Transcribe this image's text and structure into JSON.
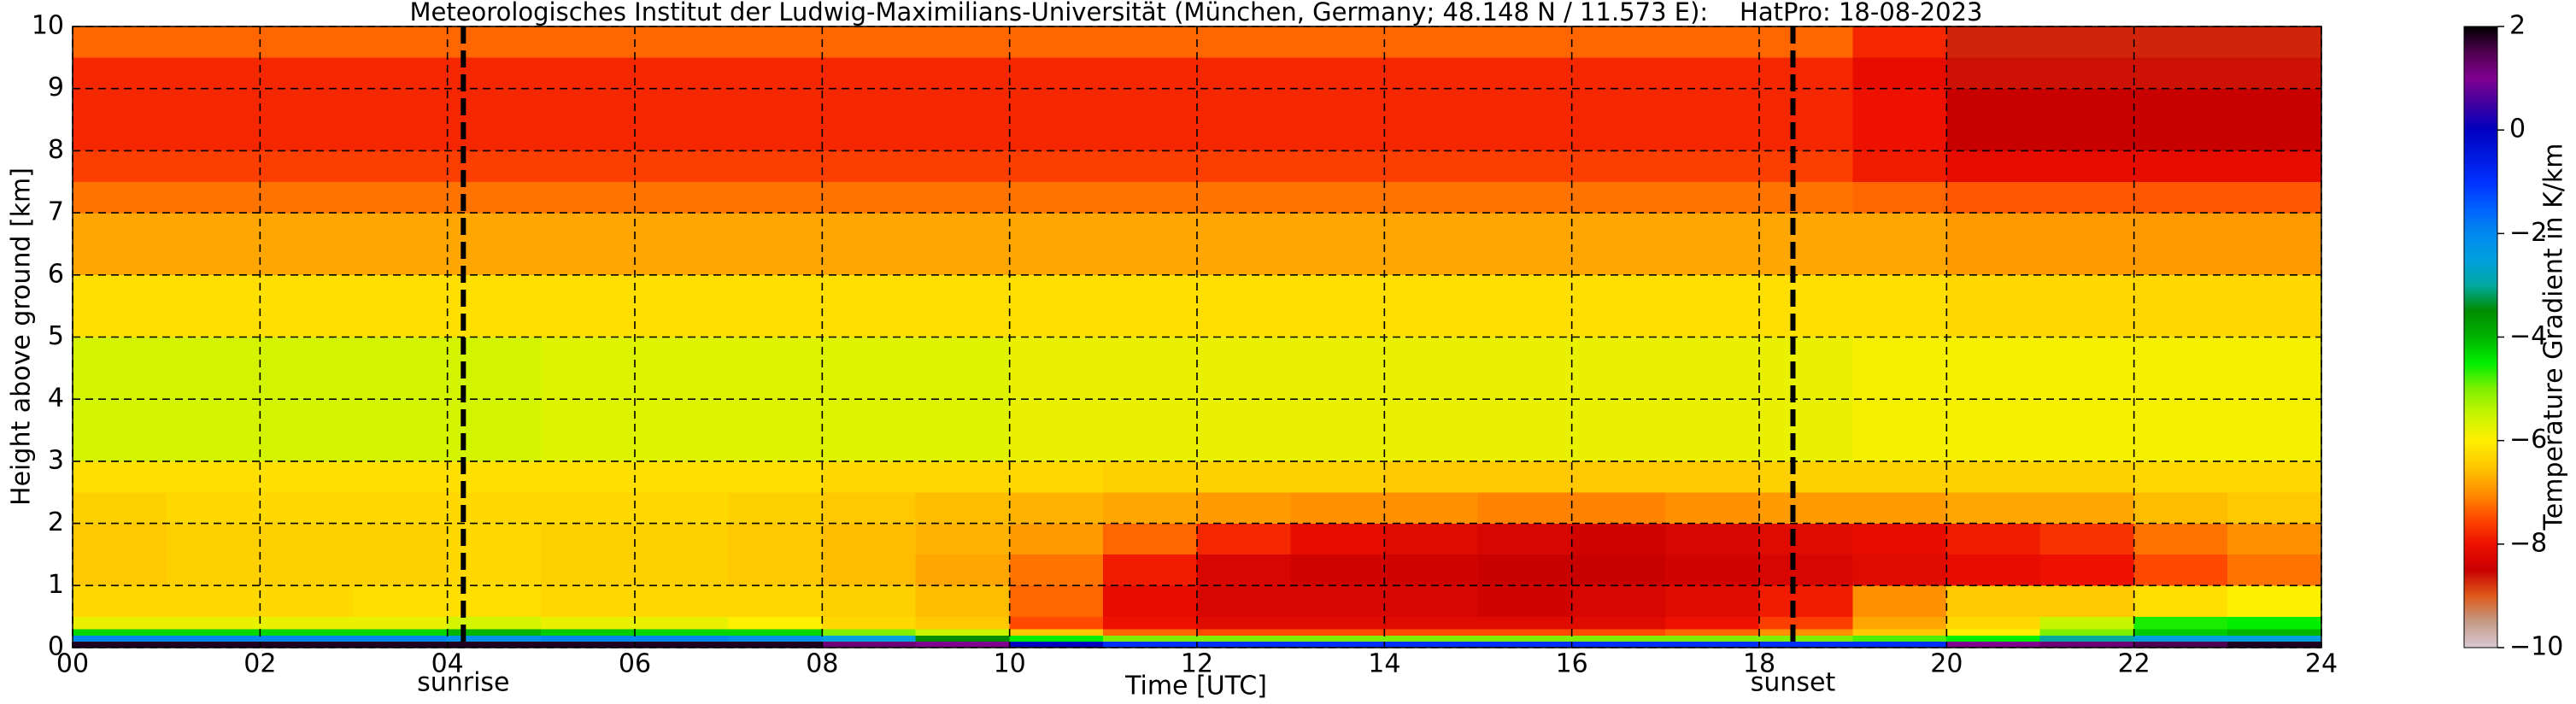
{
  "chart_data": {
    "type": "heatmap",
    "title": "Meteorologisches Institut der Ludwig-Maximilians-Universität (München, Germany; 48.148 N / 11.573 E):    HatPro: 18-08-2023",
    "x_label": "Time [UTC]",
    "y_label": "Height above ground [km]",
    "colorbar_label": "Temperature Gradient in K/km",
    "xlim": [
      0,
      24
    ],
    "ylim": [
      0,
      10
    ],
    "xticks": [
      {
        "value": 0,
        "label": "00"
      },
      {
        "value": 2,
        "label": "02"
      },
      {
        "value": 4,
        "label": "04"
      },
      {
        "value": 6,
        "label": "06"
      },
      {
        "value": 8,
        "label": "08"
      },
      10,
      12,
      14,
      16,
      18,
      20,
      22,
      24
    ],
    "yticks": [
      0,
      1,
      2,
      3,
      4,
      5,
      6,
      7,
      8,
      9,
      10
    ],
    "grid": true,
    "clim": [
      -10,
      2
    ],
    "cticks": [
      {
        "value": -10,
        "label": "−10"
      },
      {
        "value": -8,
        "label": "−8"
      },
      {
        "value": -6,
        "label": "−6"
      },
      {
        "value": -4,
        "label": "−4"
      },
      {
        "value": -2,
        "label": "−2"
      },
      0,
      2
    ],
    "colorscale": [
      [
        -10,
        "#d9c8d4"
      ],
      [
        -9.5,
        "#c49a86"
      ],
      [
        -9,
        "#e05a1a"
      ],
      [
        -8.5,
        "#c80000"
      ],
      [
        -8,
        "#ee1000"
      ],
      [
        -7.5,
        "#ff4a00"
      ],
      [
        -7,
        "#ff9000"
      ],
      [
        -6.5,
        "#ffc800"
      ],
      [
        -6,
        "#ffef00"
      ],
      [
        -5.5,
        "#c8f500"
      ],
      [
        -5,
        "#7ef000"
      ],
      [
        -4.5,
        "#00ee00"
      ],
      [
        -4,
        "#00b400"
      ],
      [
        -3.5,
        "#008c00"
      ],
      [
        -3,
        "#00a8a0"
      ],
      [
        -2.5,
        "#00a0e0"
      ],
      [
        -2,
        "#0088ee"
      ],
      [
        -1.5,
        "#0060ff"
      ],
      [
        -1,
        "#0030ff"
      ],
      [
        0,
        "#0000c0"
      ],
      [
        0.5,
        "#4000a0"
      ],
      [
        1,
        "#800090"
      ],
      [
        1.5,
        "#500050"
      ],
      [
        2,
        "#000000"
      ]
    ],
    "annotations": [
      {
        "text": "sunrise",
        "x": 4.17
      },
      {
        "text": "sunset",
        "x": 18.36
      }
    ],
    "x_edges": [
      0,
      1,
      2,
      3,
      4,
      5,
      6,
      7,
      8,
      9,
      10,
      11,
      12,
      13,
      14,
      15,
      16,
      17,
      18,
      19,
      20,
      21,
      22,
      23,
      24
    ],
    "y_edges": [
      0,
      0.1,
      0.2,
      0.3,
      0.5,
      1,
      1.5,
      2,
      2.5,
      3,
      4,
      5,
      6,
      7,
      7.5,
      8,
      9,
      9.5,
      10
    ],
    "z": [
      [
        1.8,
        1.8,
        1.8,
        1.8,
        1.8,
        1.8,
        1.8,
        1.8,
        1.2,
        1.0,
        0,
        -1,
        -1,
        -1,
        -1,
        -1,
        -1,
        -1,
        -1,
        -1,
        1,
        1.2,
        1.5,
        1.8
      ],
      [
        -2,
        -2,
        -2,
        -2,
        -2.2,
        -2,
        -2,
        -2.2,
        -2.5,
        -3.5,
        -4.5,
        -5,
        -5,
        -5,
        -5,
        -5,
        -5,
        -5,
        -5,
        -4.8,
        -4.5,
        -3,
        -2.5,
        -2.5
      ],
      [
        -4.3,
        -4.3,
        -4.3,
        -4.3,
        -4,
        -4.2,
        -4.3,
        -4.3,
        -5,
        -5.5,
        -6.5,
        -7.3,
        -7.5,
        -7.5,
        -7.5,
        -7.5,
        -7.5,
        -7.3,
        -7,
        -6.5,
        -6,
        -5,
        -4.2,
        -4
      ],
      [
        -5.8,
        -5.8,
        -5.8,
        -5.8,
        -5.6,
        -5.8,
        -5.8,
        -6,
        -6.3,
        -6.5,
        -7.5,
        -8,
        -8.2,
        -8.2,
        -8.2,
        -8.2,
        -8.2,
        -8,
        -7.6,
        -6.8,
        -6.3,
        -5.5,
        -4.6,
        -4.5
      ],
      [
        -6.3,
        -6.3,
        -6.3,
        -6.2,
        -6.2,
        -6.3,
        -6.3,
        -6.3,
        -6.4,
        -6.6,
        -7.3,
        -8.1,
        -8.3,
        -8.3,
        -8.3,
        -8.4,
        -8.3,
        -8.2,
        -7.9,
        -7,
        -6.5,
        -6.5,
        -6.2,
        -6
      ],
      [
        -6.5,
        -6.4,
        -6.4,
        -6.4,
        -6.3,
        -6.4,
        -6.4,
        -6.5,
        -6.6,
        -6.8,
        -7.2,
        -7.9,
        -8.3,
        -8.4,
        -8.4,
        -8.5,
        -8.5,
        -8.4,
        -8.3,
        -8.2,
        -8.1,
        -8,
        -7.5,
        -7.2
      ],
      [
        -6.5,
        -6.4,
        -6.4,
        -6.4,
        -6.3,
        -6.4,
        -6.4,
        -6.5,
        -6.6,
        -6.7,
        -6.9,
        -7.3,
        -7.8,
        -8.1,
        -8.2,
        -8.3,
        -8.4,
        -8.3,
        -8.2,
        -8.1,
        -7.9,
        -7.7,
        -7.2,
        -7
      ],
      [
        -6.4,
        -6.3,
        -6.3,
        -6.3,
        -6.3,
        -6.3,
        -6.3,
        -6.4,
        -6.5,
        -6.6,
        -6.7,
        -6.8,
        -6.9,
        -7,
        -7,
        -7.1,
        -7.1,
        -7,
        -6.9,
        -6.9,
        -6.8,
        -6.8,
        -6.6,
        -6.5
      ],
      [
        -6.2,
        -6.2,
        -6.2,
        -6.2,
        -6.2,
        -6.2,
        -6.2,
        -6.2,
        -6.3,
        -6.3,
        -6.3,
        -6.4,
        -6.4,
        -6.4,
        -6.5,
        -6.5,
        -6.5,
        -6.5,
        -6.4,
        -6.4,
        -6.4,
        -6.4,
        -6.3,
        -6.3
      ],
      [
        -5.6,
        -5.6,
        -5.6,
        -5.6,
        -5.6,
        -5.7,
        -5.7,
        -5.7,
        -5.7,
        -5.7,
        -5.8,
        -5.8,
        -5.8,
        -5.8,
        -5.8,
        -5.8,
        -5.8,
        -5.8,
        -5.8,
        -5.9,
        -5.9,
        -5.9,
        -5.9,
        -5.9
      ],
      [
        -5.6,
        -5.6,
        -5.6,
        -5.6,
        -5.6,
        -5.7,
        -5.7,
        -5.7,
        -5.7,
        -5.7,
        -5.8,
        -5.8,
        -5.8,
        -5.8,
        -5.8,
        -5.8,
        -5.8,
        -5.8,
        -5.8,
        -5.9,
        -5.9,
        -5.9,
        -5.9,
        -5.9
      ],
      [
        -6.2,
        -6.2,
        -6.2,
        -6.2,
        -6.2,
        -6.2,
        -6.2,
        -6.2,
        -6.2,
        -6.2,
        -6.2,
        -6.2,
        -6.2,
        -6.2,
        -6.2,
        -6.2,
        -6.2,
        -6.2,
        -6.2,
        -6.2,
        -6.3,
        -6.3,
        -6.3,
        -6.3
      ],
      [
        -6.8,
        -6.8,
        -6.8,
        -6.8,
        -6.8,
        -6.8,
        -6.8,
        -6.8,
        -6.8,
        -6.8,
        -6.8,
        -6.8,
        -6.8,
        -6.8,
        -6.8,
        -6.8,
        -6.8,
        -6.8,
        -6.8,
        -6.8,
        -6.9,
        -6.9,
        -6.9,
        -6.9
      ],
      [
        -7.2,
        -7.2,
        -7.2,
        -7.2,
        -7.2,
        -7.2,
        -7.2,
        -7.2,
        -7.2,
        -7.2,
        -7.2,
        -7.2,
        -7.2,
        -7.2,
        -7.2,
        -7.2,
        -7.2,
        -7.2,
        -7.2,
        -7.3,
        -7.4,
        -7.4,
        -7.4,
        -7.4
      ],
      [
        -7.6,
        -7.6,
        -7.6,
        -7.6,
        -7.6,
        -7.6,
        -7.6,
        -7.6,
        -7.6,
        -7.6,
        -7.6,
        -7.6,
        -7.6,
        -7.6,
        -7.6,
        -7.6,
        -7.6,
        -7.6,
        -7.6,
        -7.9,
        -8.1,
        -8.1,
        -8.1,
        -8.1
      ],
      [
        -7.8,
        -7.8,
        -7.8,
        -7.8,
        -7.8,
        -7.8,
        -7.8,
        -7.8,
        -7.8,
        -7.8,
        -7.8,
        -7.8,
        -7.8,
        -7.8,
        -7.8,
        -7.8,
        -7.8,
        -7.8,
        -7.8,
        -8,
        -8.5,
        -8.5,
        -8.5,
        -8.5
      ],
      [
        -7.8,
        -7.8,
        -7.8,
        -7.8,
        -7.8,
        -7.8,
        -7.8,
        -7.8,
        -7.8,
        -7.8,
        -7.8,
        -7.8,
        -7.8,
        -7.8,
        -7.8,
        -7.8,
        -7.8,
        -7.8,
        -7.8,
        -8.1,
        -8.6,
        -8.6,
        -8.6,
        -8.6
      ],
      [
        -7.3,
        -7.3,
        -7.3,
        -7.3,
        -7.3,
        -7.3,
        -7.3,
        -7.3,
        -7.3,
        -7.3,
        -7.3,
        -7.3,
        -7.3,
        -7.3,
        -7.3,
        -7.3,
        -7.3,
        -7.3,
        -7.3,
        -7.8,
        -8.7,
        -8.7,
        -8.7,
        -8.7
      ]
    ]
  }
}
